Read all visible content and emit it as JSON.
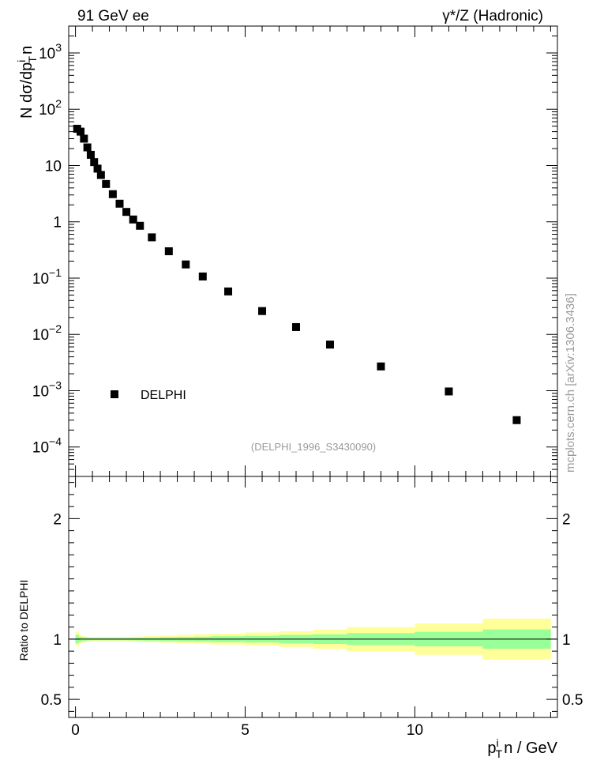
{
  "header": {
    "left_label": "91 GeV ee",
    "right_label": "γ*/Z (Hadronic)"
  },
  "watermark": "mcplots.cern.ch [arXiv:1306.3436]",
  "analysis_tag": "(DELPHI_1996_S3430090)",
  "colors": {
    "stat_band": "#99ff99",
    "total_band": "#ffff99",
    "marker": "#000000",
    "label_grey": "#9a9a9a"
  },
  "chart_data": [
    {
      "type": "scatter",
      "panel": "main",
      "ylabel": "N dσ/dp",
      "ylabel_sup": "i",
      "ylabel_sub": "T",
      "ylabel_tail": "n",
      "yscale": "log",
      "ylim": [
        3e-05,
        3000
      ],
      "xlim": [
        -0.2,
        14.2
      ],
      "yticks": [
        {
          "value": 0.0001,
          "base": "10",
          "exp": "−4"
        },
        {
          "value": 0.001,
          "base": "10",
          "exp": "−3"
        },
        {
          "value": 0.01,
          "base": "10",
          "exp": "−2"
        },
        {
          "value": 0.1,
          "base": "10",
          "exp": "−1"
        },
        {
          "value": 1,
          "base": "1",
          "exp": ""
        },
        {
          "value": 10,
          "base": "10",
          "exp": ""
        },
        {
          "value": 100,
          "base": "10",
          "exp": "2"
        },
        {
          "value": 1000,
          "base": "10",
          "exp": "3"
        }
      ],
      "legend": {
        "placement": "lower-left",
        "entries": [
          "DELPHI"
        ]
      },
      "series": [
        {
          "name": "DELPHI",
          "x": [
            0.05,
            0.15,
            0.25,
            0.35,
            0.45,
            0.55,
            0.65,
            0.75,
            0.9,
            1.1,
            1.3,
            1.5,
            1.7,
            1.9,
            2.25,
            2.75,
            3.25,
            3.75,
            4.5,
            5.5,
            6.5,
            7.5,
            9.0,
            11.0,
            13.0
          ],
          "y": [
            45,
            40,
            30,
            21,
            15.5,
            11.5,
            8.8,
            6.8,
            4.7,
            3.1,
            2.1,
            1.5,
            1.1,
            0.85,
            0.53,
            0.3,
            0.175,
            0.107,
            0.058,
            0.026,
            0.0135,
            0.0066,
            0.0027,
            0.00097,
            0.0003
          ]
        }
      ]
    },
    {
      "type": "area",
      "panel": "ratio",
      "ylabel": "Ratio to DELPHI",
      "xlabel": "p",
      "xlabel_sup": "i",
      "xlabel_sub": "T",
      "xlabel_tail": "n / GeV",
      "xlim": [
        -0.2,
        14.2
      ],
      "ylim": [
        0.35,
        2.35
      ],
      "xticks": [
        "0",
        "5",
        "10"
      ],
      "yticks": [
        "0.5",
        "1",
        "2"
      ],
      "ytick_values": [
        0.5,
        1,
        2
      ],
      "xtick_values": [
        0,
        5,
        10
      ],
      "bands": {
        "bin_edges": [
          0,
          0.1,
          0.2,
          0.3,
          0.4,
          0.5,
          0.6,
          0.7,
          0.8,
          1.0,
          1.2,
          1.4,
          1.6,
          1.8,
          2.0,
          2.5,
          3.0,
          3.5,
          4.0,
          5.0,
          6.0,
          7.0,
          8.0,
          10.0,
          12.0,
          14.0
        ],
        "stat_half_width": [
          0.035,
          0.02,
          0.015,
          0.012,
          0.01,
          0.01,
          0.01,
          0.01,
          0.01,
          0.01,
          0.01,
          0.01,
          0.011,
          0.012,
          0.013,
          0.016,
          0.018,
          0.02,
          0.024,
          0.028,
          0.035,
          0.04,
          0.05,
          0.06,
          0.08
        ],
        "total_half_width": [
          0.06,
          0.035,
          0.025,
          0.02,
          0.018,
          0.017,
          0.017,
          0.017,
          0.017,
          0.017,
          0.017,
          0.018,
          0.02,
          0.022,
          0.025,
          0.03,
          0.035,
          0.04,
          0.045,
          0.055,
          0.065,
          0.08,
          0.1,
          0.13,
          0.17
        ]
      }
    }
  ]
}
